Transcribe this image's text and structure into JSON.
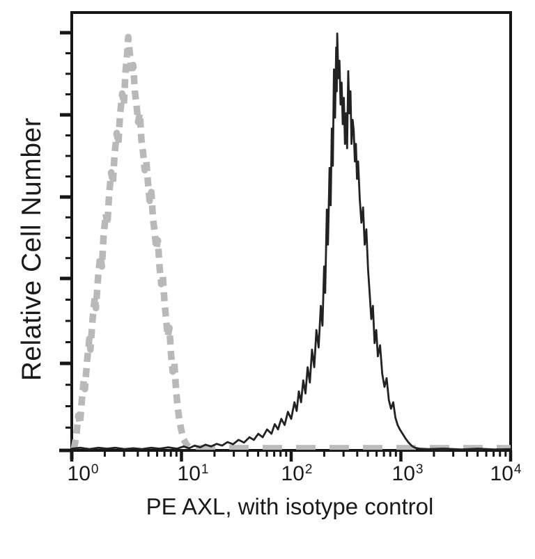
{
  "figure": {
    "background": "#ffffff",
    "ink_color": "#161616"
  },
  "chart_data": {
    "type": "line",
    "subtype": "flow-cytometry-histogram",
    "title": "",
    "xlabel": "PE AXL, with isotype control",
    "ylabel": "Relative Cell Number",
    "x_scale": "log10",
    "x_range": [
      1,
      10000
    ],
    "y_axis": {
      "labeled_ticks": false,
      "range_relative": [
        0,
        1
      ]
    },
    "grid": false,
    "legend": null,
    "x_tick_labels": [
      {
        "base": "10",
        "exp": "0"
      },
      {
        "base": "10",
        "exp": "1"
      },
      {
        "base": "10",
        "exp": "2"
      },
      {
        "base": "10",
        "exp": "3"
      },
      {
        "base": "10",
        "exp": "4"
      }
    ],
    "colors": {
      "ink": "#161616",
      "sample": "#222222",
      "isotype": "#b9b9b9"
    },
    "series": [
      {
        "name": "isotype control",
        "role": "control",
        "line_style": "dashed",
        "color": "#b9b9b9",
        "stroke_width": 9.5,
        "dash": [
          13,
          9
        ],
        "points_log10x_relheight": [
          [
            0.02,
            0.004
          ],
          [
            0.04,
            0.03
          ],
          [
            0.06,
            0.08
          ],
          [
            0.075,
            0.06
          ],
          [
            0.09,
            0.11
          ],
          [
            0.11,
            0.16
          ],
          [
            0.12,
            0.14
          ],
          [
            0.14,
            0.205
          ],
          [
            0.16,
            0.255
          ],
          [
            0.17,
            0.23
          ],
          [
            0.19,
            0.3
          ],
          [
            0.21,
            0.35
          ],
          [
            0.22,
            0.325
          ],
          [
            0.24,
            0.395
          ],
          [
            0.26,
            0.445
          ],
          [
            0.275,
            0.42
          ],
          [
            0.29,
            0.49
          ],
          [
            0.31,
            0.54
          ],
          [
            0.325,
            0.515
          ],
          [
            0.34,
            0.585
          ],
          [
            0.36,
            0.635
          ],
          [
            0.375,
            0.61
          ],
          [
            0.39,
            0.675
          ],
          [
            0.41,
            0.725
          ],
          [
            0.425,
            0.7
          ],
          [
            0.44,
            0.765
          ],
          [
            0.46,
            0.815
          ],
          [
            0.475,
            0.79
          ],
          [
            0.49,
            0.865
          ],
          [
            0.505,
            0.905
          ],
          [
            0.515,
            0.944
          ],
          [
            0.53,
            0.905
          ],
          [
            0.545,
            0.86
          ],
          [
            0.56,
            0.88
          ],
          [
            0.575,
            0.82
          ],
          [
            0.59,
            0.79
          ],
          [
            0.605,
            0.75
          ],
          [
            0.62,
            0.77
          ],
          [
            0.635,
            0.71
          ],
          [
            0.65,
            0.68
          ],
          [
            0.665,
            0.64
          ],
          [
            0.68,
            0.66
          ],
          [
            0.695,
            0.61
          ],
          [
            0.71,
            0.57
          ],
          [
            0.725,
            0.59
          ],
          [
            0.74,
            0.53
          ],
          [
            0.755,
            0.5
          ],
          [
            0.77,
            0.46
          ],
          [
            0.785,
            0.48
          ],
          [
            0.8,
            0.42
          ],
          [
            0.815,
            0.38
          ],
          [
            0.83,
            0.4
          ],
          [
            0.845,
            0.34
          ],
          [
            0.86,
            0.3
          ],
          [
            0.875,
            0.26
          ],
          [
            0.89,
            0.28
          ],
          [
            0.905,
            0.22
          ],
          [
            0.92,
            0.18
          ],
          [
            0.935,
            0.2
          ],
          [
            0.95,
            0.14
          ],
          [
            0.965,
            0.1
          ],
          [
            0.98,
            0.07
          ],
          [
            1.0,
            0.045
          ],
          [
            1.02,
            0.025
          ],
          [
            1.05,
            0.012
          ],
          [
            1.08,
            0.006
          ]
        ]
      },
      {
        "name": "isotype control baseline",
        "role": "control-baseline",
        "line_style": "dashed",
        "color": "#bcbcbc",
        "stroke_width": 7,
        "dash": [
          28,
          20
        ],
        "points_log10x_relheight": [
          [
            1.13,
            0.007
          ],
          [
            4.0,
            0.007
          ]
        ]
      },
      {
        "name": "PE AXL",
        "role": "sample",
        "line_style": "solid",
        "color": "#222222",
        "stroke_width": 2.8,
        "dash": null,
        "points_log10x_relheight": [
          [
            0.0,
            0.004
          ],
          [
            0.08,
            0.006
          ],
          [
            0.16,
            0.003
          ],
          [
            0.24,
            0.006
          ],
          [
            0.32,
            0.004
          ],
          [
            0.4,
            0.006
          ],
          [
            0.48,
            0.003
          ],
          [
            0.56,
            0.005
          ],
          [
            0.64,
            0.003
          ],
          [
            0.72,
            0.006
          ],
          [
            0.8,
            0.004
          ],
          [
            0.88,
            0.007
          ],
          [
            0.96,
            0.004
          ],
          [
            1.02,
            0.009
          ],
          [
            1.07,
            0.005
          ],
          [
            1.12,
            0.011
          ],
          [
            1.17,
            0.007
          ],
          [
            1.22,
            0.013
          ],
          [
            1.27,
            0.009
          ],
          [
            1.32,
            0.015
          ],
          [
            1.37,
            0.011
          ],
          [
            1.42,
            0.019
          ],
          [
            1.47,
            0.014
          ],
          [
            1.52,
            0.024
          ],
          [
            1.57,
            0.018
          ],
          [
            1.62,
            0.03
          ],
          [
            1.66,
            0.024
          ],
          [
            1.7,
            0.038
          ],
          [
            1.74,
            0.03
          ],
          [
            1.78,
            0.048
          ],
          [
            1.82,
            0.038
          ],
          [
            1.85,
            0.06
          ],
          [
            1.88,
            0.048
          ],
          [
            1.91,
            0.072
          ],
          [
            1.94,
            0.058
          ],
          [
            1.97,
            0.088
          ],
          [
            2.0,
            0.072
          ],
          [
            2.03,
            0.11
          ],
          [
            2.05,
            0.09
          ],
          [
            2.07,
            0.135
          ],
          [
            2.09,
            0.11
          ],
          [
            2.11,
            0.16
          ],
          [
            2.13,
            0.13
          ],
          [
            2.15,
            0.19
          ],
          [
            2.17,
            0.155
          ],
          [
            2.19,
            0.23
          ],
          [
            2.21,
            0.19
          ],
          [
            2.23,
            0.275
          ],
          [
            2.25,
            0.235
          ],
          [
            2.27,
            0.33
          ],
          [
            2.285,
            0.285
          ],
          [
            2.3,
            0.42
          ],
          [
            2.31,
            0.36
          ],
          [
            2.325,
            0.55
          ],
          [
            2.335,
            0.47
          ],
          [
            2.35,
            0.645
          ],
          [
            2.36,
            0.56
          ],
          [
            2.37,
            0.735
          ],
          [
            2.38,
            0.65
          ],
          [
            2.39,
            0.87
          ],
          [
            2.4,
            0.76
          ],
          [
            2.41,
            0.92
          ],
          [
            2.415,
            0.82
          ],
          [
            2.42,
            0.952
          ],
          [
            2.43,
            0.85
          ],
          [
            2.44,
            0.89
          ],
          [
            2.45,
            0.79
          ],
          [
            2.46,
            0.84
          ],
          [
            2.47,
            0.745
          ],
          [
            2.48,
            0.805
          ],
          [
            2.49,
            0.7
          ],
          [
            2.5,
            0.77
          ],
          [
            2.51,
            0.69
          ],
          [
            2.52,
            0.866
          ],
          [
            2.53,
            0.77
          ],
          [
            2.54,
            0.82
          ],
          [
            2.55,
            0.7
          ],
          [
            2.56,
            0.755
          ],
          [
            2.57,
            0.73
          ],
          [
            2.58,
            0.66
          ],
          [
            2.59,
            0.7
          ],
          [
            2.6,
            0.62
          ],
          [
            2.61,
            0.66
          ],
          [
            2.625,
            0.575
          ],
          [
            2.64,
            0.52
          ],
          [
            2.655,
            0.555
          ],
          [
            2.67,
            0.47
          ],
          [
            2.685,
            0.505
          ],
          [
            2.7,
            0.415
          ],
          [
            2.715,
            0.36
          ],
          [
            2.73,
            0.3
          ],
          [
            2.745,
            0.33
          ],
          [
            2.76,
            0.245
          ],
          [
            2.775,
            0.275
          ],
          [
            2.79,
            0.215
          ],
          [
            2.81,
            0.24
          ],
          [
            2.83,
            0.175
          ],
          [
            2.85,
            0.145
          ],
          [
            2.87,
            0.165
          ],
          [
            2.89,
            0.115
          ],
          [
            2.91,
            0.095
          ],
          [
            2.93,
            0.11
          ],
          [
            2.95,
            0.075
          ],
          [
            2.97,
            0.058
          ],
          [
            2.99,
            0.048
          ],
          [
            3.01,
            0.04
          ],
          [
            3.04,
            0.028
          ],
          [
            3.07,
            0.018
          ],
          [
            3.1,
            0.01
          ],
          [
            3.13,
            0.006
          ],
          [
            3.17,
            0.004
          ],
          [
            3.25,
            0.003
          ],
          [
            3.4,
            0.004
          ],
          [
            3.55,
            0.002
          ],
          [
            3.7,
            0.004
          ],
          [
            3.85,
            0.002
          ],
          [
            4.0,
            0.003
          ]
        ]
      }
    ]
  }
}
